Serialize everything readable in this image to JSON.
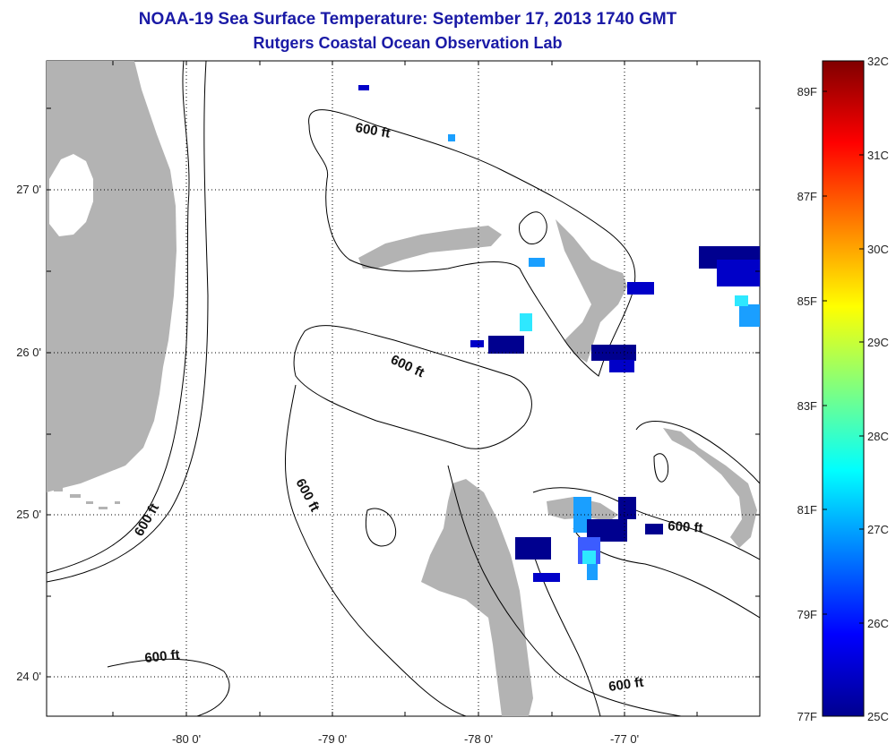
{
  "title": {
    "line1": "NOAA-19 Sea Surface Temperature:  September 17, 2013 1740 GMT",
    "line2": "Rutgers Coastal Ocean Observation Lab"
  },
  "map": {
    "lon_ticks": [
      "-80 0'",
      "-79 0'",
      "-78 0'",
      "-77 0'"
    ],
    "lat_ticks": [
      "27 0'",
      "26 0'",
      "25 0'",
      "24 0'"
    ],
    "contour_labels": [
      "600 ft",
      "600 ft",
      "600 ft",
      "600 ft",
      "600 ft",
      "600 ft"
    ],
    "colors": {
      "land": "#b3b3b3",
      "ocean": "#ffffff",
      "sst_low": "#00008f"
    }
  },
  "colorbar": {
    "celsius_labels": [
      "32C",
      "31C",
      "30C",
      "29C",
      "28C",
      "27C",
      "26C",
      "25C"
    ],
    "fahrenheit_labels": [
      "89F",
      "87F",
      "85F",
      "83F",
      "81F",
      "79F",
      "77F"
    ],
    "range_c": [
      25,
      32
    ],
    "colormap": "jet"
  }
}
